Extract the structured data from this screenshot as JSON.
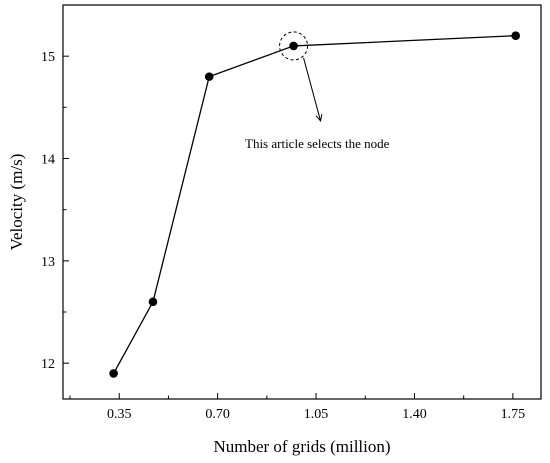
{
  "chart_data": {
    "type": "line",
    "title": "",
    "xlabel": "Number of grids (million)",
    "ylabel": "Velocity (m/s)",
    "xlim": [
      0.15,
      1.85
    ],
    "ylim": [
      11.65,
      15.5
    ],
    "x_ticks": [
      0.35,
      0.7,
      1.05,
      1.4,
      1.75
    ],
    "x_tick_labels": [
      "0.35",
      "0.70",
      "1.05",
      "1.40",
      "1.75"
    ],
    "y_ticks": [
      12,
      13,
      14,
      15
    ],
    "y_tick_labels": [
      "12",
      "13",
      "14",
      "15"
    ],
    "grid": false,
    "legend": "none",
    "series": [
      {
        "x": [
          0.33,
          0.47,
          0.67,
          0.97,
          1.76
        ],
        "y": [
          11.9,
          12.6,
          14.8,
          15.1,
          15.2
        ],
        "color": "#000000",
        "marker": "circle"
      }
    ],
    "annotation": {
      "text": "This article selects the node",
      "point_index": 3,
      "style": "dashed-circle-with-arrow"
    }
  }
}
